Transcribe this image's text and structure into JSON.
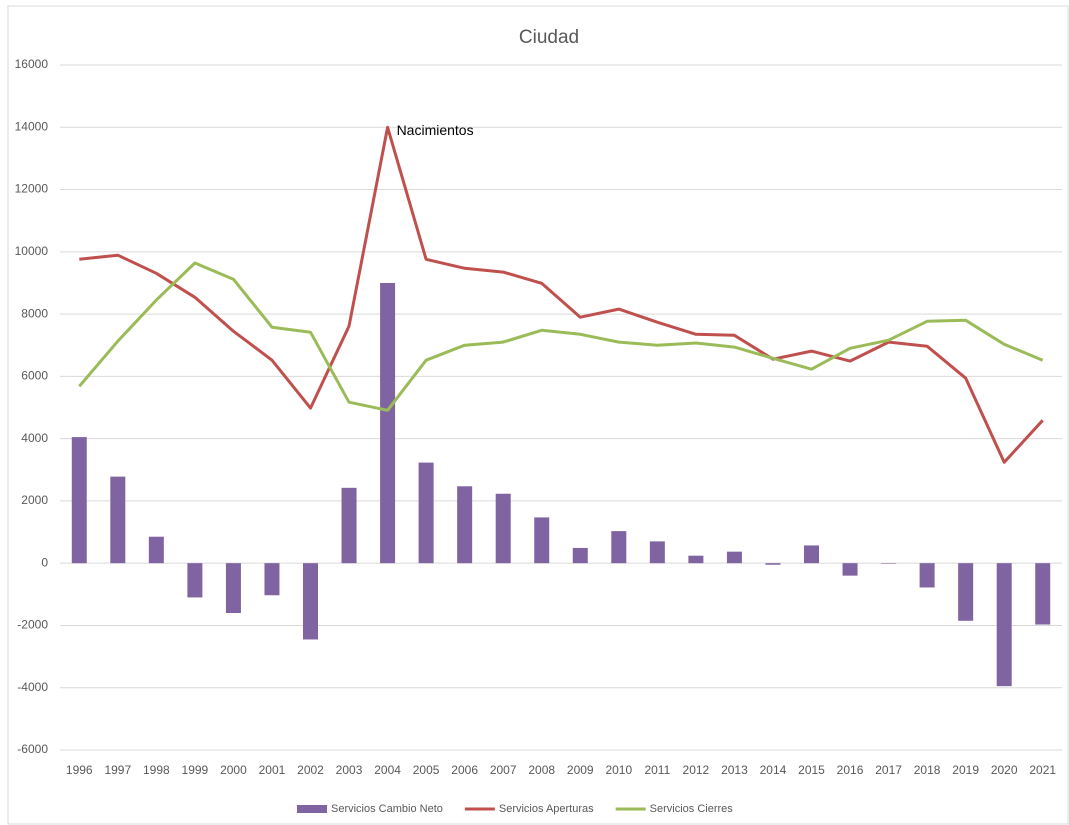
{
  "chart_data": {
    "type": "combo",
    "title": "Ciudad",
    "annotation": "Nacimientos",
    "categories": [
      "1996",
      "1997",
      "1998",
      "1999",
      "2000",
      "2001",
      "2002",
      "2003",
      "2004",
      "2005",
      "2006",
      "2007",
      "2008",
      "2009",
      "2010",
      "2011",
      "2012",
      "2013",
      "2014",
      "2015",
      "2016",
      "2017",
      "2018",
      "2019",
      "2020",
      "2021"
    ],
    "series": [
      {
        "name": "Servicios Cambio Neto",
        "type": "bar",
        "color": "#8064a2",
        "values": [
          4050,
          2780,
          850,
          -1100,
          -1600,
          -1030,
          -2450,
          2420,
          9000,
          3230,
          2470,
          2230,
          1470,
          490,
          1030,
          700,
          240,
          370,
          -50,
          570,
          -400,
          0,
          -780,
          -1850,
          -3950,
          -1970
        ]
      },
      {
        "name": "Servicios  Aperturas",
        "type": "line",
        "color": "#c0504d",
        "values": [
          9760,
          9890,
          9310,
          8540,
          7450,
          6520,
          4980,
          7610,
          14000,
          9760,
          9470,
          9350,
          8990,
          7900,
          8160,
          7740,
          7350,
          7320,
          6550,
          6810,
          6490,
          7100,
          6970,
          5940,
          3240,
          4590
        ]
      },
      {
        "name": "Servicios  Cierres",
        "type": "line",
        "color": "#9bbb59",
        "values": [
          5680,
          7130,
          8450,
          9640,
          9120,
          7580,
          7420,
          5170,
          4910,
          6520,
          7000,
          7100,
          7480,
          7350,
          7100,
          7000,
          7070,
          6940,
          6580,
          6230,
          6900,
          7160,
          7770,
          7800,
          7030,
          6520
        ]
      }
    ],
    "ylim": [
      -6000,
      16000
    ],
    "yticks": [
      -6000,
      -4000,
      -2000,
      0,
      2000,
      4000,
      6000,
      8000,
      10000,
      12000,
      14000,
      16000
    ],
    "grid": true,
    "legend": "bottom"
  }
}
